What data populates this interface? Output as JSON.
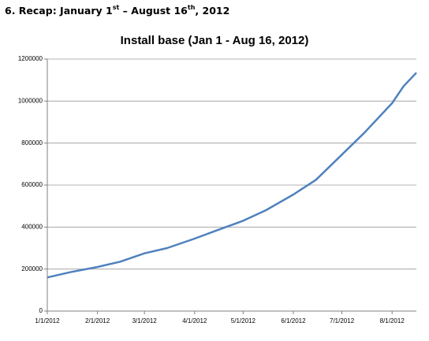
{
  "heading": [
    "6. Recap: January 1",
    "st",
    " – August 16",
    "th",
    ", 2012"
  ],
  "chart_data": {
    "type": "line",
    "title": "Install base (Jan 1 - Aug 16, 2012)",
    "x": [
      "1/1/2012",
      "1/15/2012",
      "2/1/2012",
      "2/15/2012",
      "3/1/2012",
      "3/15/2012",
      "4/1/2012",
      "4/15/2012",
      "5/1/2012",
      "5/15/2012",
      "6/1/2012",
      "6/15/2012",
      "7/1/2012",
      "7/15/2012",
      "8/1/2012",
      "8/8/2012",
      "8/16/2012"
    ],
    "series": [
      {
        "name": "Install base",
        "color": "#4f81bd",
        "values": [
          160000,
          185000,
          210000,
          235000,
          275000,
          300000,
          345000,
          385000,
          430000,
          480000,
          555000,
          625000,
          745000,
          850000,
          990000,
          1070000,
          1135000
        ]
      }
    ],
    "xlim": [
      "1/1/2012",
      "8/16/2012"
    ],
    "xticks": [
      "1/1/2012",
      "2/1/2012",
      "3/1/2012",
      "4/1/2012",
      "5/1/2012",
      "6/1/2012",
      "7/1/2012",
      "8/1/2012"
    ],
    "ylim": [
      0,
      1200000
    ],
    "yticks": [
      0,
      200000,
      400000,
      600000,
      800000,
      1000000,
      1200000
    ],
    "grid": true
  }
}
